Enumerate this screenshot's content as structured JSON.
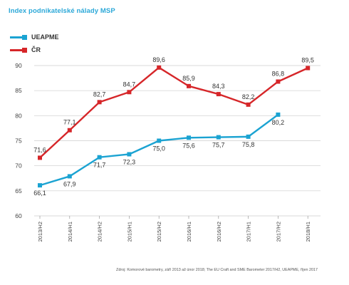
{
  "title": "Index podnikatelské nálady MSP",
  "source": "Zdroj: Komorové barometry, září 2013 až únor 2018; The EU Craft and SME Barometer 2017/H2, UEAPME, říjen 2017",
  "colors": {
    "title": "#2ba8d8",
    "grid": "#cccccc",
    "axis_text": "#444444"
  },
  "chart_data": {
    "type": "line",
    "title": "Index podnikatelské nálady MSP",
    "xlabel": "",
    "ylabel": "",
    "ylim": [
      60,
      90
    ],
    "yticks": [
      60,
      65,
      70,
      75,
      80,
      85,
      90
    ],
    "grid": "horizontal",
    "legend_position": "top-left",
    "categories": [
      "2013/H2",
      "2014/H1",
      "2014/H2",
      "2015/H1",
      "2015/H2",
      "2016/H1",
      "2016/H2",
      "2017/H1",
      "2017/H2",
      "2018/H1"
    ],
    "series": [
      {
        "name": "UEAPME",
        "color": "#1ba3d2",
        "values": [
          66.1,
          67.9,
          71.7,
          72.3,
          75.0,
          75.6,
          75.7,
          75.8,
          80.2,
          null
        ],
        "labels": [
          "66,1",
          "67,9",
          "71,7",
          "72,3",
          "75,0",
          "75,6",
          "75,7",
          "75,8",
          "80,2",
          null
        ],
        "label_position": "below"
      },
      {
        "name": "ČR",
        "color": "#d62629",
        "values": [
          71.6,
          77.1,
          82.7,
          84.7,
          89.6,
          85.9,
          84.3,
          82.2,
          86.8,
          89.5
        ],
        "labels": [
          "71,6",
          "77,1",
          "82,7",
          "84,7",
          "89,6",
          "85,9",
          "84,3",
          "82,2",
          "86,8",
          "89,5"
        ],
        "label_position": "above"
      }
    ]
  }
}
